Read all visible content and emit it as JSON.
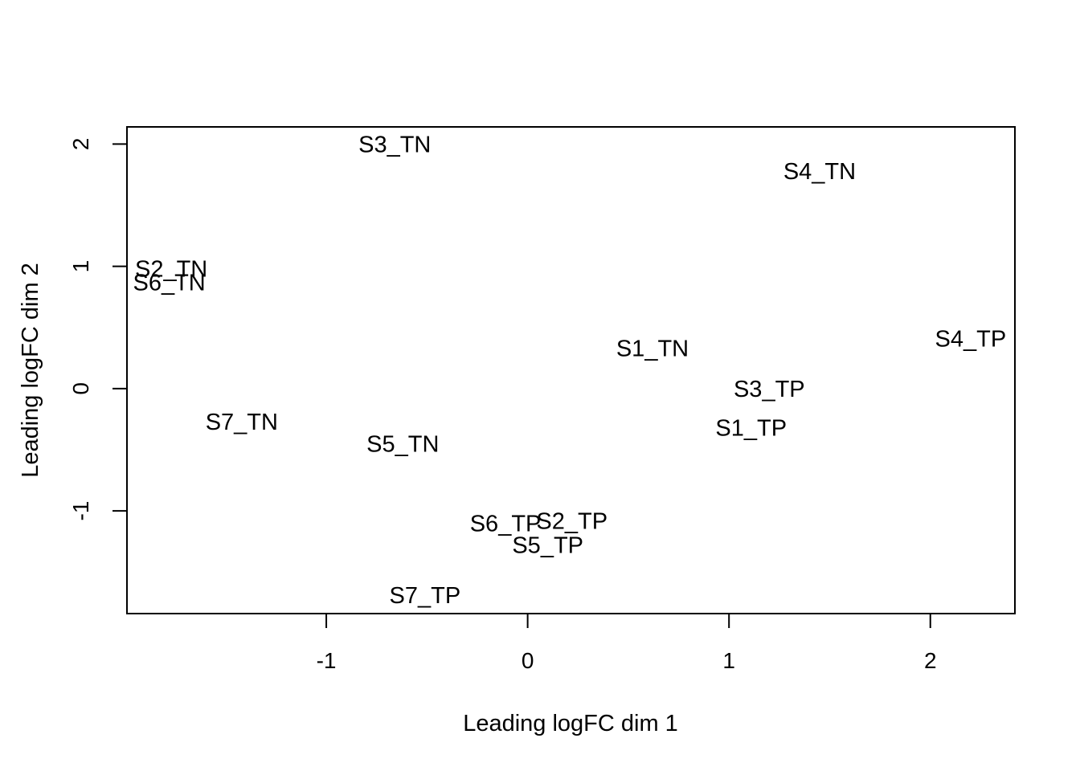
{
  "chart_data": {
    "type": "scatter",
    "xlabel": "Leading logFC dim 1",
    "ylabel": "Leading logFC dim 2",
    "xlim": [
      -1.99,
      2.42
    ],
    "ylim": [
      -1.84,
      2.14
    ],
    "x_ticks": [
      -1,
      0,
      1,
      2
    ],
    "y_ticks": [
      -1,
      0,
      1,
      2
    ],
    "grid": false,
    "legend": "none",
    "points": [
      {
        "label": "S3_TN",
        "x": -0.66,
        "y": 2.0
      },
      {
        "label": "S4_TN",
        "x": 1.45,
        "y": 1.78
      },
      {
        "label": "S2_TN",
        "x": -1.77,
        "y": 0.98
      },
      {
        "label": "S6_TN",
        "x": -1.78,
        "y": 0.87
      },
      {
        "label": "S4_TP",
        "x": 2.2,
        "y": 0.41
      },
      {
        "label": "S1_TN",
        "x": 0.62,
        "y": 0.33
      },
      {
        "label": "S3_TP",
        "x": 1.2,
        "y": 0.0
      },
      {
        "label": "S1_TP",
        "x": 1.11,
        "y": -0.32
      },
      {
        "label": "S7_TN",
        "x": -1.42,
        "y": -0.27
      },
      {
        "label": "S5_TN",
        "x": -0.62,
        "y": -0.45
      },
      {
        "label": "S6_TP",
        "x": -0.11,
        "y": -1.1
      },
      {
        "label": "S2_TP",
        "x": 0.22,
        "y": -1.08
      },
      {
        "label": "S5_TP",
        "x": 0.1,
        "y": -1.28
      },
      {
        "label": "S7_TP",
        "x": -0.51,
        "y": -1.69
      }
    ]
  }
}
